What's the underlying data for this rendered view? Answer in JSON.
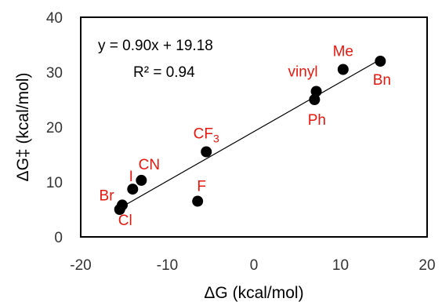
{
  "chart_data": {
    "type": "scatter",
    "title": "",
    "xlabel": "ΔG (kcal/mol)",
    "ylabel": "ΔG‡ (kcal/mol)",
    "xlim": [
      -20,
      20
    ],
    "ylim": [
      0,
      40
    ],
    "xticks": [
      "-20",
      "-10",
      "0",
      "10",
      "20"
    ],
    "yticks": [
      "0",
      "10",
      "20",
      "30",
      "40"
    ],
    "grid": false,
    "marker_color": "#000000",
    "label_color": "#e8170e",
    "points": [
      {
        "label": "Me",
        "x": 10.3,
        "y": 30.5
      },
      {
        "label": "Bn",
        "x": 14.6,
        "y": 32.0
      },
      {
        "label": "vinyl",
        "x": 7.2,
        "y": 26.5
      },
      {
        "label": "Ph",
        "x": 7.0,
        "y": 25.0
      },
      {
        "label": "CF3",
        "x": -5.5,
        "y": 15.5
      },
      {
        "label": "CN",
        "x": -13.0,
        "y": 10.3
      },
      {
        "label": "I",
        "x": -14.0,
        "y": 8.7
      },
      {
        "label": "F",
        "x": -6.5,
        "y": 6.5
      },
      {
        "label": "Br",
        "x": -15.2,
        "y": 5.8
      },
      {
        "label": "Cl",
        "x": -15.5,
        "y": 5.0
      }
    ],
    "trendline": {
      "slope": 0.9,
      "intercept": 19.18,
      "x_range": [
        -15.5,
        14.6
      ],
      "equation": "y = 0.90x + 19.18",
      "r2": "R² = 0.94"
    }
  }
}
